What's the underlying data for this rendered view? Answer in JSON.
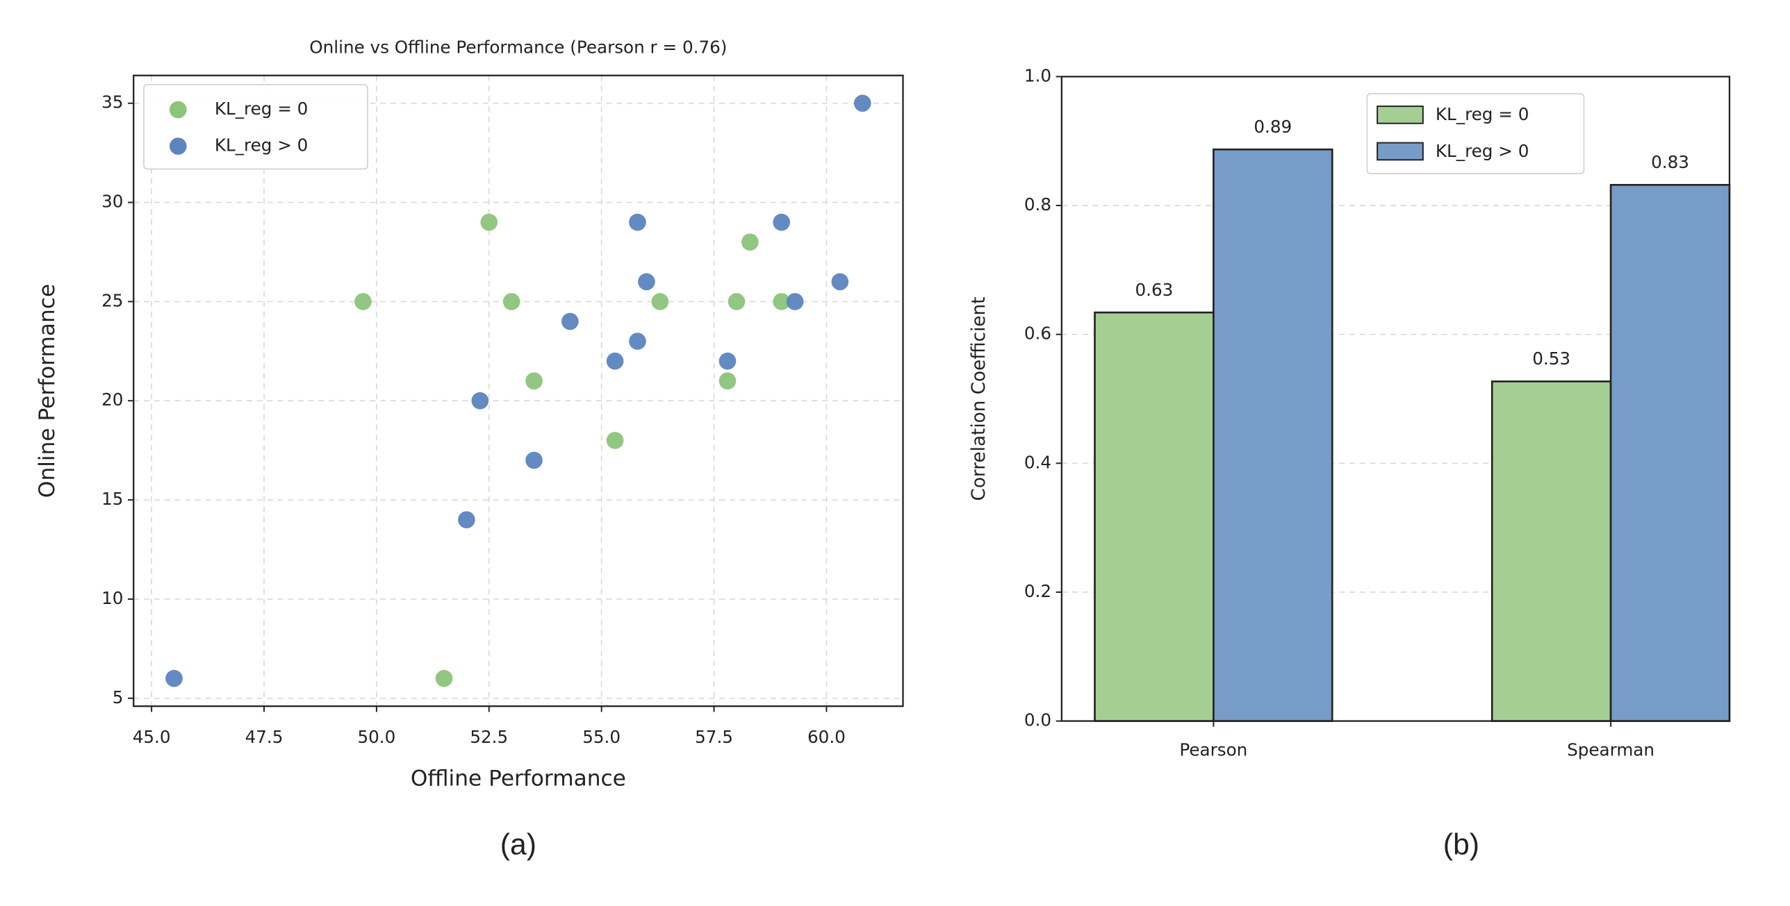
{
  "chart_data": [
    {
      "type": "scatter",
      "title": "Online vs Offline Performance (Pearson r = 0.76)",
      "x_label": "Offline Performance",
      "y_label": "Online Performance",
      "panel_label": "(a)",
      "xlim": [
        44.6,
        61.7
      ],
      "ylim": [
        4.6,
        36.4
      ],
      "xticks": [
        {
          "value": 45,
          "label": "45.0"
        },
        47.5,
        {
          "value": 50,
          "label": "50.0"
        },
        52.5,
        {
          "value": 55,
          "label": "55.0"
        },
        57.5,
        {
          "value": 60,
          "label": "60.0"
        }
      ],
      "yticks": [
        5,
        10,
        15,
        20,
        25,
        30,
        35
      ],
      "grid": true,
      "legend": "upper left",
      "series": [
        {
          "name": "KL_reg = 0",
          "color": "#8cc47a",
          "x": [
            49.7,
            52.5,
            53.0,
            53.5,
            51.5,
            55.3,
            56.3,
            58.3,
            58.0,
            57.8,
            59.0
          ],
          "values": [
            25,
            29,
            25,
            21,
            6,
            18,
            25,
            28,
            25,
            21,
            25
          ]
        },
        {
          "name": "KL_reg > 0",
          "color": "#5b84c0",
          "x": [
            45.5,
            52.0,
            52.3,
            53.5,
            54.3,
            55.3,
            55.8,
            55.8,
            56.0,
            57.8,
            59.0,
            59.3,
            60.3,
            60.8
          ],
          "values": [
            6,
            14,
            20,
            17,
            24,
            22,
            23,
            29,
            26,
            22,
            29,
            25,
            26,
            35
          ]
        }
      ]
    },
    {
      "type": "bar",
      "y_label": "Correlation Coefficient",
      "panel_label": "(b)",
      "categories": [
        "Pearson",
        "Spearman"
      ],
      "ylim": [
        0,
        1
      ],
      "yticks": [
        {
          "value": 0,
          "label": "0.0"
        },
        0.2,
        0.4,
        0.6,
        0.8,
        {
          "value": 1,
          "label": "1.0"
        }
      ],
      "grid": true,
      "legend": "upper center",
      "series": [
        {
          "name": "KL_reg = 0",
          "color": "#a5cf92",
          "values": [
            0.634,
            0.527
          ],
          "value_labels": [
            "0.63",
            "0.53"
          ]
        },
        {
          "name": "KL_reg > 0",
          "color": "#779cc8",
          "values": [
            0.887,
            0.832
          ],
          "value_labels": [
            "0.89",
            "0.83"
          ]
        }
      ]
    }
  ]
}
